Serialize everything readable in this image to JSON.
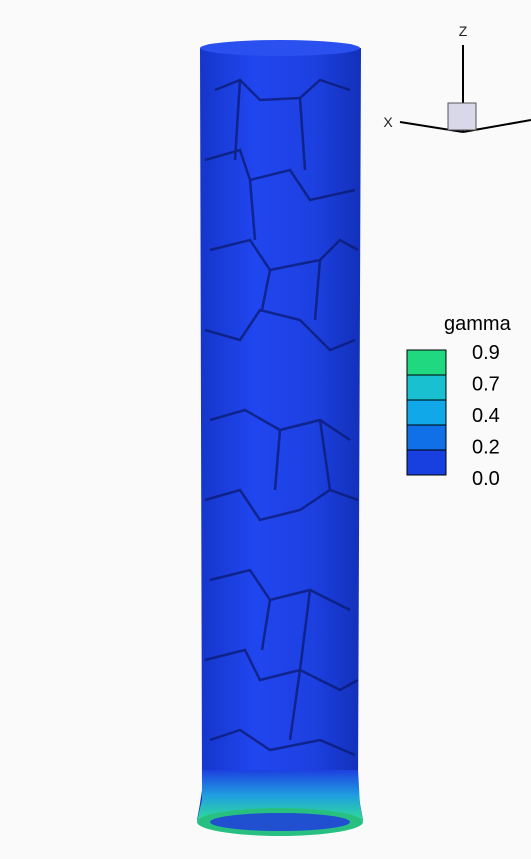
{
  "axes": {
    "z": "Z",
    "x": "X"
  },
  "legend": {
    "title": "gamma",
    "labels": [
      "0.9",
      "0.7",
      "0.4",
      "0.2",
      "0.0"
    ]
  }
}
